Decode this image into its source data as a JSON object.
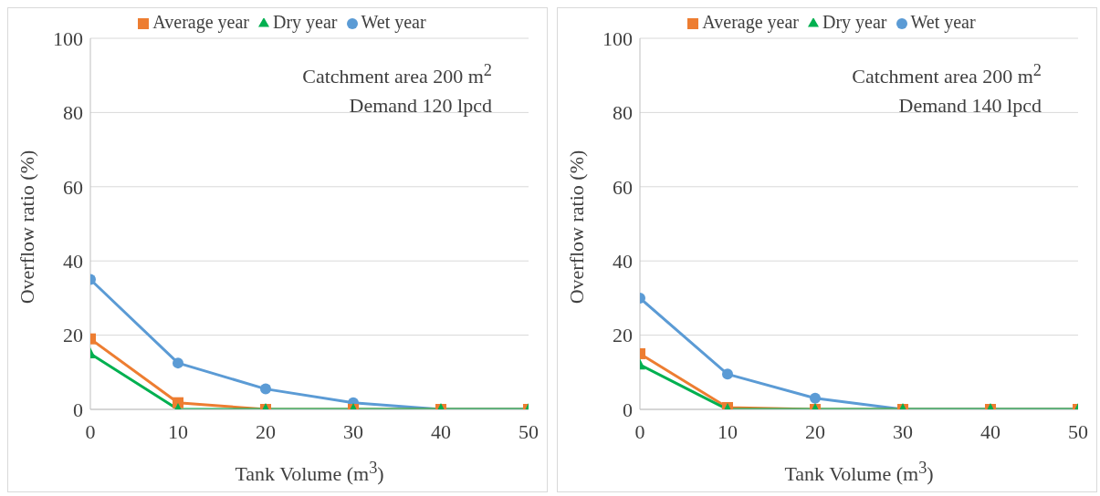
{
  "chart_data": [
    {
      "type": "line",
      "xlabel": "Tank Volume (m$^{3}$)",
      "ylabel": "Overflow ratio (%)",
      "annotations": [
        "Catchment area 200 m$^{2}$",
        "Demand 120 lpcd"
      ],
      "x": [
        0,
        10,
        20,
        30,
        40,
        50
      ],
      "xlim": [
        0,
        50
      ],
      "xticks": [
        0,
        10,
        20,
        30,
        40,
        50
      ],
      "ylim": [
        0,
        100
      ],
      "yticks": [
        0,
        20,
        40,
        60,
        80,
        100
      ],
      "grid": "y",
      "legend": "top",
      "series": [
        {
          "name": "Wet year",
          "color": "#5b9bd5",
          "marker": "circle",
          "values": [
            35,
            12.5,
            5.5,
            1.8,
            0,
            0
          ]
        },
        {
          "name": "Average year",
          "color": "#ed7d31",
          "marker": "square",
          "values": [
            19,
            1.8,
            0,
            0,
            0,
            0
          ]
        },
        {
          "name": "Dry year",
          "color": "#00b050",
          "marker": "triangle",
          "values": [
            15,
            0,
            0,
            0,
            0,
            0
          ]
        }
      ]
    },
    {
      "type": "line",
      "xlabel": "Tank Volume (m$^{3}$)",
      "ylabel": "Overflow ratio (%)",
      "annotations": [
        "Catchment area 200 m$^{2}$",
        "Demand 140 lpcd"
      ],
      "x": [
        0,
        10,
        20,
        30,
        40,
        50
      ],
      "xlim": [
        0,
        50
      ],
      "xticks": [
        0,
        10,
        20,
        30,
        40,
        50
      ],
      "ylim": [
        0,
        100
      ],
      "yticks": [
        0,
        20,
        40,
        60,
        80,
        100
      ],
      "grid": "y",
      "legend": "top",
      "series": [
        {
          "name": "Wet year",
          "color": "#5b9bd5",
          "marker": "circle",
          "values": [
            30,
            9.5,
            3,
            0,
            0,
            0
          ]
        },
        {
          "name": "Average year",
          "color": "#ed7d31",
          "marker": "square",
          "values": [
            15,
            0.5,
            0,
            0,
            0,
            0
          ]
        },
        {
          "name": "Dry year",
          "color": "#00b050",
          "marker": "triangle",
          "values": [
            12,
            0,
            0,
            0,
            0,
            0
          ]
        }
      ]
    }
  ]
}
